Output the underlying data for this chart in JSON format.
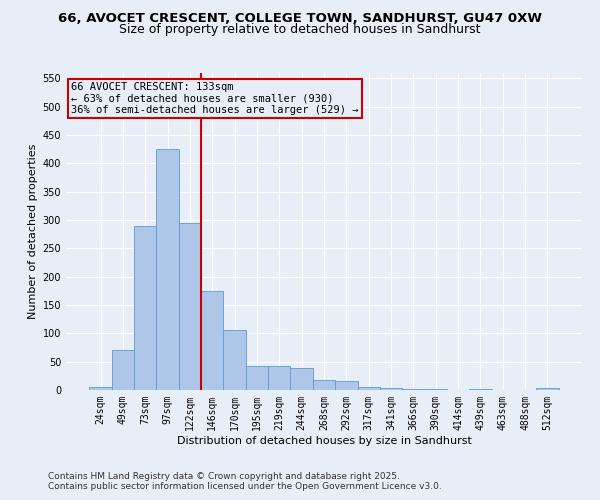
{
  "title_line1": "66, AVOCET CRESCENT, COLLEGE TOWN, SANDHURST, GU47 0XW",
  "title_line2": "Size of property relative to detached houses in Sandhurst",
  "xlabel": "Distribution of detached houses by size in Sandhurst",
  "ylabel": "Number of detached properties",
  "bar_labels": [
    "24sqm",
    "49sqm",
    "73sqm",
    "97sqm",
    "122sqm",
    "146sqm",
    "170sqm",
    "195sqm",
    "219sqm",
    "244sqm",
    "268sqm",
    "292sqm",
    "317sqm",
    "341sqm",
    "366sqm",
    "390sqm",
    "414sqm",
    "439sqm",
    "463sqm",
    "488sqm",
    "512sqm"
  ],
  "bar_values": [
    6,
    70,
    290,
    425,
    295,
    175,
    105,
    43,
    42,
    38,
    17,
    15,
    6,
    3,
    1,
    1,
    0,
    1,
    0,
    0,
    4
  ],
  "bar_color": "#aec6e8",
  "bar_edge_color": "#5b9bd5",
  "bg_color": "#e8eef7",
  "grid_color": "#ffffff",
  "vline_x": 4.5,
  "vline_color": "#cc0000",
  "annotation_line1": "66 AVOCET CRESCENT: 133sqm",
  "annotation_line2": "← 63% of detached houses are smaller (930)",
  "annotation_line3": "36% of semi-detached houses are larger (529) →",
  "annotation_box_color": "#cc0000",
  "ylim": [
    0,
    560
  ],
  "yticks": [
    0,
    50,
    100,
    150,
    200,
    250,
    300,
    350,
    400,
    450,
    500,
    550
  ],
  "footer_line1": "Contains HM Land Registry data © Crown copyright and database right 2025.",
  "footer_line2": "Contains public sector information licensed under the Open Government Licence v3.0.",
  "title_fontsize": 9.5,
  "subtitle_fontsize": 9,
  "axis_label_fontsize": 8,
  "tick_fontsize": 7,
  "annotation_fontsize": 7.5,
  "footer_fontsize": 6.5
}
